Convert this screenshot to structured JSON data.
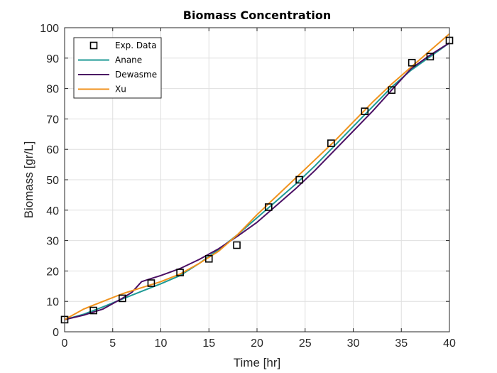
{
  "chart_data": {
    "type": "line",
    "title": "Biomass Concentration",
    "xlabel": "Time [hr]",
    "ylabel": "Biomass [gr/L]",
    "xlim": [
      0,
      40
    ],
    "ylim": [
      0,
      100
    ],
    "xticks": [
      0,
      5,
      10,
      15,
      20,
      25,
      30,
      35,
      40
    ],
    "yticks": [
      0,
      10,
      20,
      30,
      40,
      50,
      60,
      70,
      80,
      90,
      100
    ],
    "grid": true,
    "legend_position": "top-left",
    "series": [
      {
        "name": "Exp. Data",
        "style": "markers",
        "marker": "square",
        "color": "#000000",
        "x": [
          0,
          3,
          6,
          9,
          12,
          15,
          17.9,
          21.2,
          24.4,
          27.7,
          31.2,
          34,
          36.1,
          38,
          40
        ],
        "y": [
          4,
          7,
          11,
          16,
          19.5,
          24,
          28.5,
          41,
          50,
          62,
          72.5,
          79.5,
          88.5,
          90.5,
          95.8
        ]
      },
      {
        "name": "Anane",
        "style": "line",
        "color": "#1e9a95",
        "x": [
          0,
          2,
          4,
          6,
          8,
          10,
          12,
          14,
          16,
          18,
          20,
          22,
          24,
          26,
          28,
          30,
          32,
          34,
          36,
          38,
          40
        ],
        "y": [
          4,
          5.8,
          8.2,
          10.8,
          13.3,
          15.8,
          18.5,
          22.5,
          27,
          32,
          37.5,
          43,
          48.5,
          54.5,
          61,
          67.5,
          74,
          80.5,
          86,
          90.5,
          95
        ]
      },
      {
        "name": "Dewasme",
        "style": "line",
        "color": "#4b0f64",
        "x": [
          0,
          2,
          4,
          6,
          7,
          8,
          9,
          10,
          12,
          14,
          16,
          18,
          20,
          22,
          24,
          26,
          28,
          30,
          32,
          34,
          36,
          38,
          40
        ],
        "y": [
          4,
          5.5,
          7.5,
          11,
          13,
          16.5,
          17.5,
          18.5,
          20.8,
          23.8,
          27.3,
          31.5,
          36,
          41.5,
          47,
          53,
          59.5,
          66,
          72.5,
          79.5,
          86.5,
          91,
          95
        ]
      },
      {
        "name": "Xu",
        "style": "line",
        "color": "#f0921c",
        "x": [
          0,
          2,
          4,
          6,
          8,
          10,
          12,
          14,
          16,
          18,
          20,
          22,
          24,
          26,
          28,
          30,
          32,
          34,
          36,
          38,
          40
        ],
        "y": [
          4,
          7.5,
          10,
          12.5,
          14.5,
          16.5,
          19,
          22.5,
          26.5,
          32,
          38.5,
          44.5,
          50.5,
          56.5,
          62.5,
          69,
          75.5,
          81.5,
          87,
          92.5,
          98
        ]
      }
    ]
  }
}
